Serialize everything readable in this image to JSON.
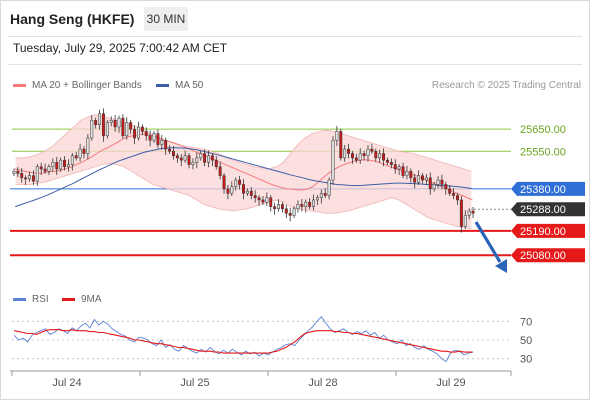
{
  "header": {
    "title": "Hang Seng (HKFE)",
    "interval": "30 MIN",
    "datetime": "Tuesday, July 29, 2025 7:00:42 AM CET"
  },
  "legend": {
    "ma20": "MA 20 + Bollinger Bands",
    "ma50": "MA 50",
    "credit": "Research © 2025 Trading Central"
  },
  "rsi_legend": {
    "rsi": "RSI",
    "ma9": "9MA"
  },
  "colors": {
    "ma20": "#f47a7a",
    "band_fill": "#fbd5d5",
    "ma50": "#3b5ea8",
    "bull": "#e2e2e2",
    "bear": "#c91a1a",
    "green_level": "#8cc63f",
    "pivot": "#2f6fd6",
    "support": "#e51919",
    "current": "#333333",
    "arrow": "#2b63b8",
    "rsi": "#5b82d6",
    "rsi_ma": "#e51919"
  },
  "chart_data": {
    "type": "candlestick",
    "ylim": [
      24950,
      25800
    ],
    "x_ticks": [
      "Jul 24",
      "Jul 25",
      "Jul 28",
      "Jul 29"
    ],
    "levels": [
      {
        "value": 25650,
        "label": "25650.00",
        "kind": "resistance"
      },
      {
        "value": 25550,
        "label": "25550.00",
        "kind": "resistance"
      },
      {
        "value": 25380,
        "label": "25380.00",
        "kind": "pivot"
      },
      {
        "value": 25288,
        "label": "25288.00",
        "kind": "current"
      },
      {
        "value": 25190,
        "label": "25190.00",
        "kind": "support"
      },
      {
        "value": 25080,
        "label": "25080.00",
        "kind": "support"
      }
    ],
    "close": [
      25460,
      25450,
      25430,
      25425,
      25440,
      25415,
      25480,
      25470,
      25460,
      25480,
      25500,
      25470,
      25510,
      25480,
      25490,
      25530,
      25520,
      25560,
      25540,
      25610,
      25690,
      25670,
      25720,
      25620,
      25680,
      25690,
      25660,
      25700,
      25620,
      25680,
      25650,
      25610,
      25660,
      25640,
      25620,
      25600,
      25630,
      25580,
      25600,
      25560,
      25550,
      25530,
      25520,
      25510,
      25530,
      25490,
      25500,
      25520,
      25540,
      25500,
      25530,
      25510,
      25480,
      25440,
      25380,
      25360,
      25390,
      25420,
      25400,
      25360,
      25370,
      25350,
      25340,
      25330,
      25320,
      25340,
      25300,
      25290,
      25310,
      25290,
      25270,
      25260,
      25290,
      25310,
      25300,
      25320,
      25300,
      25330,
      25340,
      25360,
      25350,
      25420,
      25600,
      25640,
      25520,
      25560,
      25540,
      25520,
      25510,
      25540,
      25530,
      25560,
      25550,
      25520,
      25540,
      25510,
      25500,
      25490,
      25470,
      25480,
      25440,
      25460,
      25430,
      25410,
      25440,
      25420,
      25430,
      25380,
      25400,
      25420,
      25400,
      25380,
      25360,
      25350,
      25330,
      25210,
      25260,
      25280,
      25270
    ],
    "ma20": [
      25470,
      25465,
      25460,
      25455,
      25452,
      25450,
      25455,
      25458,
      25460,
      25465,
      25472,
      25478,
      25490,
      25500,
      25512,
      25525,
      25540,
      25555,
      25565,
      25578,
      25590,
      25605,
      25615,
      25620,
      25625,
      25628,
      25625,
      25620,
      25610,
      25600,
      25595,
      25588,
      25580,
      25570,
      25560,
      25550,
      25540,
      25530,
      25520,
      25510,
      25500,
      25490,
      25480,
      25470,
      25460,
      25450,
      25440,
      25430,
      25420,
      25410,
      25400,
      25392,
      25385,
      25380,
      25378,
      25376,
      25375,
      25380,
      25390,
      25410,
      25430,
      25450,
      25465,
      25480,
      25490,
      25498,
      25505,
      25510,
      25512,
      25510,
      25505,
      25498,
      25490,
      25480,
      25472,
      25465,
      25455,
      25448,
      25440,
      25430,
      25420,
      25410,
      25400,
      25390,
      25380,
      25370,
      25360,
      25350,
      25340,
      25330
    ],
    "ma50": [
      25300,
      25310,
      25320,
      25330,
      25340,
      25352,
      25365,
      25378,
      25392,
      25405,
      25420,
      25435,
      25450,
      25465,
      25478,
      25492,
      25505,
      25515,
      25525,
      25535,
      25545,
      25552,
      25558,
      25563,
      25566,
      25566,
      25565,
      25562,
      25558,
      25552,
      25545,
      25537,
      25530,
      25522,
      25514,
      25506,
      25498,
      25490,
      25482,
      25474,
      25466,
      25458,
      25450,
      25442,
      25435,
      25428,
      25420,
      25415,
      25410,
      25405,
      25400,
      25398,
      25396,
      25395,
      25396,
      25398,
      25400,
      25402,
      25404,
      25406,
      25406,
      25405,
      25404,
      25402,
      25400,
      25398,
      25396,
      25394,
      25392,
      25390,
      25386,
      25382
    ],
    "bb_upper": [
      25520,
      25520,
      25525,
      25535,
      25550,
      25570,
      25600,
      25630,
      25660,
      25690,
      25705,
      25715,
      25710,
      25700,
      25690,
      25680,
      25670,
      25655,
      25640,
      25625,
      25610,
      25595,
      25585,
      25575,
      25570,
      25565,
      25560,
      25550,
      25540,
      25525,
      25510,
      25500,
      25490,
      25480,
      25475,
      25470,
      25480,
      25500,
      25540,
      25580,
      25610,
      25630,
      25640,
      25645,
      25640,
      25630,
      25620,
      25610,
      25600,
      25590,
      25580,
      25570,
      25560,
      25550,
      25545,
      25540,
      25530,
      25520,
      25510,
      25500,
      25490,
      25480,
      25470,
      25460
    ],
    "bb_lower": [
      25400,
      25400,
      25400,
      25405,
      25410,
      25420,
      25430,
      25440,
      25450,
      25460,
      25470,
      25480,
      25490,
      25495,
      25490,
      25480,
      25460,
      25440,
      25420,
      25400,
      25390,
      25380,
      25370,
      25360,
      25350,
      25330,
      25310,
      25300,
      25290,
      25285,
      25280,
      25285,
      25290,
      25300,
      25310,
      25320,
      25330,
      25320,
      25300,
      25290,
      25285,
      25280,
      25275,
      25270,
      25270,
      25275,
      25280,
      25290,
      25300,
      25310,
      25320,
      25330,
      25340,
      25330,
      25310,
      25290,
      25270,
      25250,
      25240,
      25230,
      25220,
      25210,
      25205,
      25200
    ],
    "rsi": [
      55,
      50,
      52,
      48,
      55,
      58,
      60,
      62,
      56,
      58,
      62,
      60,
      57,
      63,
      60,
      65,
      68,
      63,
      72,
      66,
      70,
      67,
      62,
      59,
      56,
      54,
      50,
      48,
      53,
      52,
      50,
      46,
      44,
      50,
      42,
      45,
      40,
      38,
      44,
      41,
      38,
      36,
      40,
      37,
      42,
      38,
      35,
      39,
      36,
      40,
      37,
      34,
      38,
      35,
      37,
      33,
      36,
      34,
      37,
      40,
      42,
      45,
      46,
      44,
      50,
      55,
      60,
      64,
      70,
      75,
      68,
      62,
      58,
      60,
      62,
      58,
      56,
      59,
      57,
      60,
      55,
      58,
      52,
      55,
      50,
      48,
      46,
      50,
      44,
      46,
      42,
      40,
      44,
      40,
      38,
      35,
      30,
      27,
      36,
      39,
      38,
      34,
      36,
      37
    ],
    "rsi_ma": [
      60,
      59,
      58,
      57,
      57,
      56,
      58,
      60,
      61,
      61,
      61,
      60,
      60,
      61,
      60,
      60,
      60,
      59,
      59,
      58,
      58,
      57,
      56,
      55,
      54,
      53,
      52,
      50,
      50,
      49,
      48,
      47,
      46,
      46,
      45,
      44,
      43,
      42,
      42,
      41,
      40,
      39,
      38,
      38,
      38,
      37,
      37,
      36,
      36,
      36,
      36,
      36,
      36,
      36,
      36,
      36,
      36,
      36,
      37,
      38,
      40,
      42,
      45,
      48,
      52,
      56,
      58,
      59,
      60,
      60,
      60,
      60,
      59,
      59,
      58,
      58,
      57,
      57,
      56,
      55,
      54,
      53,
      52,
      51,
      50,
      49,
      48,
      47,
      46,
      45,
      44,
      43,
      42,
      41,
      40,
      39,
      38,
      38,
      37,
      37,
      38,
      37,
      37,
      37
    ],
    "rsi_ylim": [
      20,
      80
    ],
    "rsi_ticks": [
      "70",
      "50",
      "30"
    ]
  }
}
